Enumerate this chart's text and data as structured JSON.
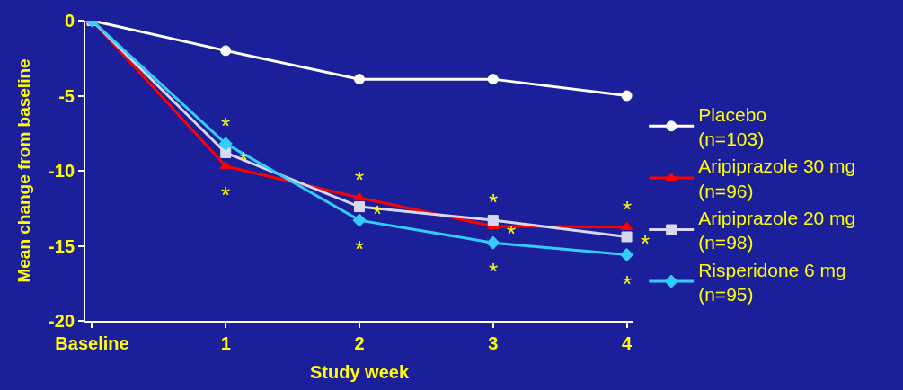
{
  "chart_data": {
    "type": "line",
    "xlabel": "Study week",
    "ylabel": "Mean change from baseline",
    "categories": [
      "Baseline",
      "1",
      "2",
      "3",
      "4"
    ],
    "series": [
      {
        "name": "Placebo\n(n=103)",
        "color": "#ffffff",
        "marker": "circle",
        "values": [
          0,
          -2.0,
          -3.9,
          -3.9,
          -5.0
        ]
      },
      {
        "name": "Aripiprazole 30 mg\n(n=96)",
        "color": "#ff0000",
        "marker": "triangle",
        "values": [
          0,
          -9.7,
          -11.8,
          -13.7,
          -13.75
        ]
      },
      {
        "name": "Aripiprazole 20 mg\n(n=98)",
        "color": "#d8d8f0",
        "marker": "square",
        "values": [
          0,
          -8.8,
          -12.4,
          -13.3,
          -14.4
        ]
      },
      {
        "name": "Risperidone 6 mg\n(n=95)",
        "color": "#33ccff",
        "marker": "diamond",
        "values": [
          0,
          -8.2,
          -13.3,
          -14.8,
          -15.6
        ]
      }
    ],
    "ylim": [
      -20,
      0
    ],
    "yticks": [
      -20,
      -15,
      -10,
      -5,
      0
    ],
    "annotations": [
      {
        "text": "*",
        "x": "1",
        "y": -8.2
      },
      {
        "text": "*",
        "x": "1",
        "y": -8.8
      },
      {
        "text": "*",
        "x": "1",
        "y": -9.7
      },
      {
        "text": "*",
        "x": "2",
        "y": -11.8
      },
      {
        "text": "*",
        "x": "2",
        "y": -12.4
      },
      {
        "text": "*",
        "x": "2",
        "y": -13.3
      },
      {
        "text": "*",
        "x": "3",
        "y": -13.3
      },
      {
        "text": "*",
        "x": "3",
        "y": -13.7
      },
      {
        "text": "*",
        "x": "3",
        "y": -14.8
      },
      {
        "text": "*",
        "x": "4",
        "y": -13.75
      },
      {
        "text": "*",
        "x": "4",
        "y": -14.4
      },
      {
        "text": "*",
        "x": "4",
        "y": -15.6
      }
    ],
    "grid": false,
    "legend": "right",
    "line_style": "solid"
  }
}
